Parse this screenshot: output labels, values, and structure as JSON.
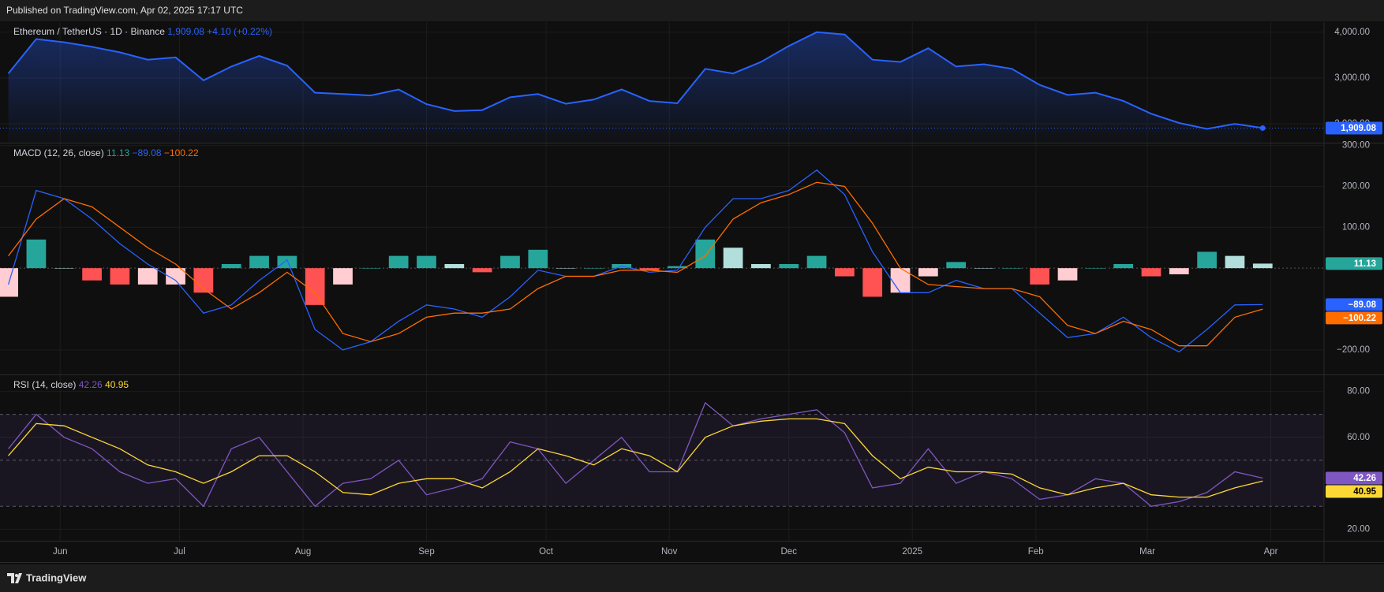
{
  "header": {
    "published": "Published on TradingView.com, Apr 02, 2025 17:17 UTC"
  },
  "footer": {
    "brand": "TradingView"
  },
  "chart_data": [
    {
      "type": "area",
      "title": "Ethereum / TetherUS · 1D · Binance",
      "change_label": "+4.10 (+0.22%)",
      "xlim": [
        -0.3,
        47.2
      ],
      "ylim": [
        1590,
        4220
      ],
      "yticks": [
        {
          "value": 4000,
          "label": "4,000.00"
        },
        {
          "value": 3000,
          "label": "3,000.00"
        },
        {
          "value": 2000,
          "label": "2,000.00"
        }
      ],
      "series": [
        {
          "color": "#2962ff",
          "last_label": "1,909.08",
          "values": [
            3100,
            3850,
            3780,
            3680,
            3560,
            3400,
            3450,
            2950,
            3250,
            3480,
            3270,
            2680,
            2650,
            2620,
            2750,
            2430,
            2280,
            2300,
            2580,
            2650,
            2440,
            2530,
            2750,
            2500,
            2450,
            3200,
            3100,
            3350,
            3700,
            4000,
            3950,
            3400,
            3350,
            3650,
            3250,
            3300,
            3200,
            2850,
            2630,
            2680,
            2500,
            2220,
            2020,
            1890,
            2000,
            1909.08
          ]
        }
      ]
    },
    {
      "type": "line",
      "title": "MACD (12, 26, close)",
      "xlim": [
        -0.3,
        47.2
      ],
      "ylim": [
        -260,
        305
      ],
      "yticks": [
        {
          "value": 300,
          "label": "300.00"
        },
        {
          "value": 200,
          "label": "200.00"
        },
        {
          "value": 100,
          "label": "100.00"
        },
        {
          "value": -200,
          "label": "−200.00"
        }
      ],
      "series": [
        {
          "type": "bar",
          "color": "#26a69a",
          "colors": [
            "#26a69a",
            "#b2dfdb",
            "#ff5252",
            "#ffcdd2"
          ],
          "last_label": "11.13",
          "values": [
            -70,
            70,
            0,
            -30,
            -40,
            -40,
            -40,
            -60,
            10,
            30,
            30,
            -90,
            -40,
            0,
            30,
            30,
            10,
            -10,
            30,
            45,
            0,
            0,
            10,
            -5,
            5,
            70,
            50,
            10,
            10,
            30,
            -20,
            -70,
            -60,
            -20,
            15,
            0,
            0,
            -40,
            -30,
            0,
            10,
            -20,
            -15,
            40,
            30,
            11.13
          ]
        },
        {
          "color": "#2962ff",
          "last_label": "−89.08",
          "values": [
            -40,
            190,
            170,
            120,
            60,
            10,
            -30,
            -110,
            -90,
            -30,
            20,
            -150,
            -200,
            -180,
            -130,
            -90,
            -100,
            -120,
            -70,
            -5,
            -20,
            -20,
            5,
            -10,
            -5,
            100,
            170,
            170,
            190,
            240,
            180,
            40,
            -60,
            -60,
            -30,
            -50,
            -50,
            -110,
            -170,
            -160,
            -120,
            -170,
            -205,
            -150,
            -90,
            -89.08
          ]
        },
        {
          "color": "#ff6d00",
          "last_label": "−100.22",
          "values": [
            30,
            120,
            170,
            150,
            100,
            50,
            10,
            -50,
            -100,
            -60,
            -10,
            -60,
            -160,
            -180,
            -160,
            -120,
            -110,
            -110,
            -100,
            -50,
            -20,
            -20,
            -5,
            -5,
            -10,
            30,
            120,
            160,
            180,
            210,
            200,
            110,
            0,
            -40,
            -45,
            -50,
            -50,
            -70,
            -140,
            -160,
            -130,
            -150,
            -190,
            -190,
            -120,
            -100.22
          ]
        }
      ]
    },
    {
      "type": "line",
      "title": "RSI (14, close)",
      "xlim": [
        -0.3,
        47.2
      ],
      "ylim": [
        15,
        87
      ],
      "levels": [
        70,
        50,
        30
      ],
      "yticks": [
        {
          "value": 80,
          "label": "80.00"
        },
        {
          "value": 60,
          "label": "60.00"
        },
        {
          "value": 20,
          "label": "20.00"
        }
      ],
      "xticks": [
        {
          "value": 1.86,
          "label": "Jun"
        },
        {
          "value": 6.14,
          "label": "Jul"
        },
        {
          "value": 10.57,
          "label": "Aug"
        },
        {
          "value": 15,
          "label": "Sep"
        },
        {
          "value": 19.29,
          "label": "Oct"
        },
        {
          "value": 23.71,
          "label": "Nov"
        },
        {
          "value": 28,
          "label": "Dec"
        },
        {
          "value": 32.43,
          "label": "2025"
        },
        {
          "value": 36.86,
          "label": "Feb"
        },
        {
          "value": 40.86,
          "label": "Mar"
        },
        {
          "value": 45.29,
          "label": "Apr"
        }
      ],
      "series": [
        {
          "color": "#7e57c2",
          "last_label": "42.26",
          "values": [
            55,
            70,
            60,
            55,
            45,
            40,
            42,
            30,
            55,
            60,
            45,
            30,
            40,
            42,
            50,
            35,
            38,
            42,
            58,
            55,
            40,
            50,
            60,
            45,
            45,
            75,
            65,
            68,
            70,
            72,
            62,
            38,
            40,
            55,
            40,
            45,
            42,
            33,
            35,
            42,
            40,
            30,
            32,
            36,
            45,
            42.26
          ]
        },
        {
          "color": "#fdd835",
          "last_label": "40.95",
          "values": [
            52,
            66,
            65,
            60,
            55,
            48,
            45,
            40,
            45,
            52,
            52,
            45,
            36,
            35,
            40,
            42,
            42,
            38,
            45,
            55,
            52,
            48,
            55,
            52,
            45,
            60,
            65,
            67,
            68,
            68,
            66,
            52,
            42,
            47,
            45,
            45,
            44,
            38,
            35,
            38,
            40,
            35,
            34,
            34,
            38,
            40.95
          ]
        }
      ]
    }
  ]
}
